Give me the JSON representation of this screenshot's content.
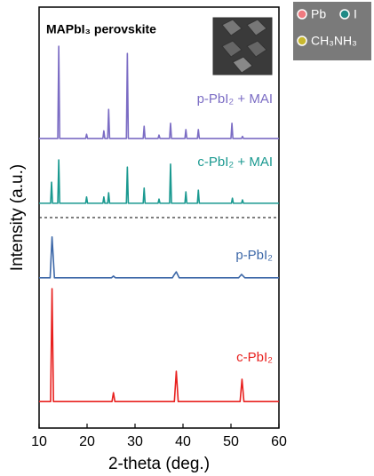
{
  "chart_data": {
    "type": "line",
    "title": "MAPbI₃ perovskite",
    "xlabel": "2-theta (deg.)",
    "ylabel": "Intensity (a.u.)",
    "xlim": [
      10,
      60
    ],
    "xticks": [
      10,
      20,
      30,
      40,
      50,
      60
    ],
    "ylim": [
      0,
      100
    ],
    "atom_legend": [
      {
        "name": "Pb",
        "color": "#f07a80"
      },
      {
        "name": "I",
        "color": "#1f8a86"
      },
      {
        "name": "CH₃NH₃",
        "color": "#c8b830"
      }
    ],
    "series": [
      {
        "name": "c-PbI₂",
        "color": "#e8211f",
        "x": [
          10,
          12.4,
          12.7,
          13.0,
          25.2,
          25.5,
          25.8,
          38.2,
          38.6,
          39.0,
          51.9,
          52.3,
          52.7,
          60
        ],
        "values": [
          6.3,
          6.3,
          33.1,
          6.3,
          6.3,
          8.4,
          6.3,
          6.3,
          13.5,
          6.3,
          6.3,
          11.6,
          6.3,
          6.3
        ]
      },
      {
        "name": "p-PbI₂",
        "color": "#3d68a8",
        "x": [
          10,
          12.3,
          12.7,
          13.2,
          25.1,
          25.5,
          25.9,
          37.8,
          38.1,
          38.6,
          39.2,
          51.6,
          52.2,
          52.9,
          60
        ],
        "values": [
          35.7,
          35.7,
          45.4,
          35.7,
          35.7,
          36.1,
          35.7,
          35.7,
          36.3,
          37.1,
          35.7,
          35.7,
          36.5,
          35.7,
          35.7
        ]
      },
      {
        "name": "c-PbI₂ + MAI",
        "color": "#1a9990",
        "x": [
          10,
          12.4,
          12.6,
          12.8,
          13.9,
          14.1,
          14.3,
          19.7,
          19.9,
          20.1,
          23.3,
          23.5,
          23.7,
          24.3,
          24.5,
          24.7,
          28.2,
          28.4,
          28.6,
          31.7,
          31.9,
          32.1,
          34.8,
          35.0,
          35.2,
          37.2,
          37.4,
          37.6,
          40.4,
          40.6,
          40.8,
          43.0,
          43.2,
          43.4,
          50.1,
          50.3,
          50.5,
          52.2,
          52.4,
          52.6,
          60
        ],
        "values": [
          53.4,
          53.4,
          58.4,
          53.4,
          53.4,
          63.7,
          53.4,
          53.4,
          54.9,
          53.4,
          53.4,
          54.9,
          53.4,
          53.4,
          55.9,
          53.4,
          53.4,
          62.0,
          53.4,
          53.4,
          57.0,
          53.4,
          53.4,
          54.4,
          53.4,
          53.4,
          62.7,
          53.4,
          53.4,
          56.1,
          53.4,
          53.4,
          56.5,
          53.4,
          53.4,
          54.6,
          53.4,
          53.4,
          54.2,
          53.4,
          53.4
        ]
      },
      {
        "name": "p-PbI₂ + MAI",
        "color": "#7b6cc4",
        "x": [
          10,
          13.9,
          14.1,
          14.3,
          19.7,
          19.9,
          20.1,
          23.3,
          23.5,
          23.7,
          24.3,
          24.5,
          24.7,
          28.2,
          28.4,
          28.6,
          31.7,
          31.9,
          32.1,
          34.8,
          35.0,
          35.2,
          37.2,
          37.4,
          37.6,
          40.4,
          40.6,
          40.8,
          43.0,
          43.2,
          43.4,
          50.0,
          50.2,
          50.4,
          52.2,
          52.4,
          52.6,
          60
        ],
        "values": [
          68.8,
          68.8,
          90.7,
          68.8,
          68.8,
          69.8,
          68.8,
          68.8,
          70.6,
          68.8,
          68.8,
          75.7,
          68.8,
          68.8,
          89.0,
          68.8,
          68.8,
          71.7,
          68.8,
          68.8,
          69.6,
          68.8,
          68.8,
          72.4,
          68.8,
          68.8,
          70.9,
          68.8,
          68.8,
          70.9,
          68.8,
          68.8,
          72.4,
          68.8,
          68.8,
          69.3,
          68.8,
          68.8
        ]
      }
    ]
  }
}
